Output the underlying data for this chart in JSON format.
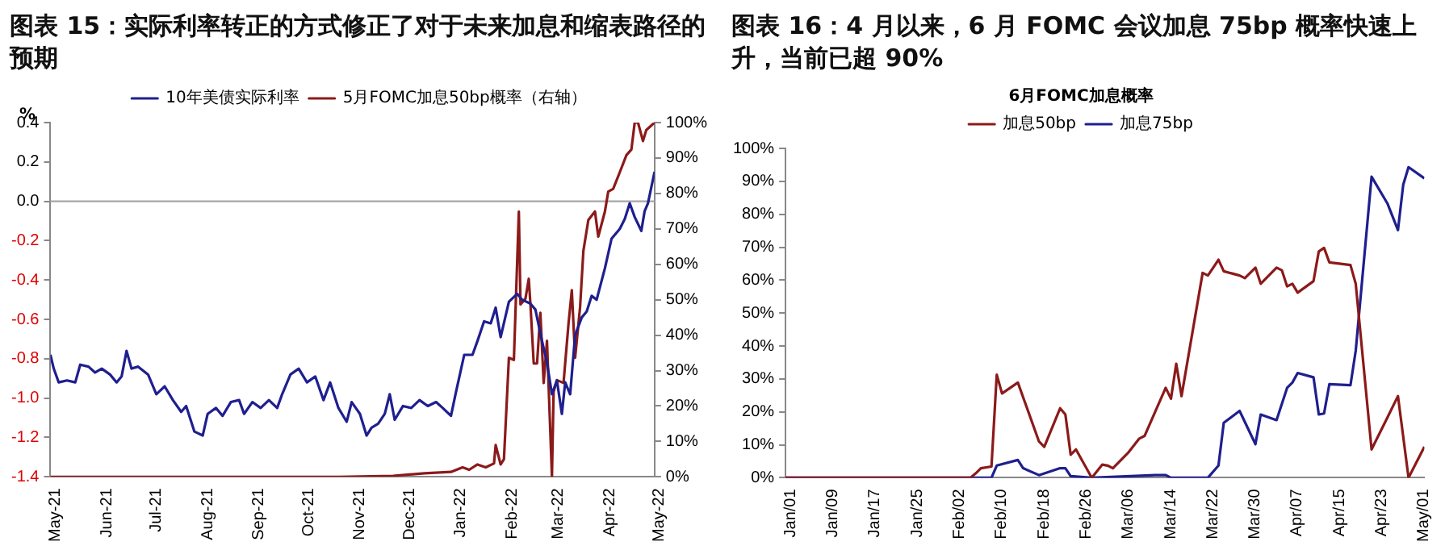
{
  "chart_data": [
    {
      "type": "line",
      "title": "图表 15：实际利率转正的方式修正了对于未来加息和缩表路径的预期",
      "ylabel": "%",
      "legend": "top",
      "grid": false,
      "marker": "none",
      "xlim": [
        "2021-05-01",
        "2022-05-01"
      ],
      "xticks": [
        {
          "value": "2021-05-01",
          "label": "May-21"
        },
        {
          "value": "2021-06-01",
          "label": "Jun-21"
        },
        {
          "value": "2021-07-01",
          "label": "Jul-21"
        },
        {
          "value": "2021-08-01",
          "label": "Aug-21"
        },
        {
          "value": "2021-09-01",
          "label": "Sep-21"
        },
        {
          "value": "2021-10-01",
          "label": "Oct-21"
        },
        {
          "value": "2021-11-01",
          "label": "Nov-21"
        },
        {
          "value": "2021-12-01",
          "label": "Dec-21"
        },
        {
          "value": "2022-01-01",
          "label": "Jan-22"
        },
        {
          "value": "2022-02-01",
          "label": "Feb-22"
        },
        {
          "value": "2022-03-01",
          "label": "Mar-22"
        },
        {
          "value": "2022-04-01",
          "label": "Apr-22"
        },
        {
          "value": "2022-05-01",
          "label": "May-22"
        }
      ],
      "ylim": [
        -1.4,
        0.4
      ],
      "yticks": [
        {
          "value": -1.4,
          "label": "-1.4"
        },
        {
          "value": -1.2,
          "label": "-1.2"
        },
        {
          "value": -1.0,
          "label": "-1.0"
        },
        {
          "value": -0.8,
          "label": "-0.8"
        },
        {
          "value": -0.6,
          "label": "-0.6"
        },
        {
          "value": -0.4,
          "label": "-0.4"
        },
        {
          "value": -0.2,
          "label": "-0.2"
        },
        {
          "value": 0,
          "label": "0.0"
        },
        {
          "value": 0.2,
          "label": "0.2"
        },
        {
          "value": 0.4,
          "label": "0.4"
        }
      ],
      "y2lim": [
        0,
        100
      ],
      "y2ticks": [
        {
          "value": 0,
          "label": "0%"
        },
        {
          "value": 10,
          "label": "10%"
        },
        {
          "value": 20,
          "label": "20%"
        },
        {
          "value": 30,
          "label": "30%"
        },
        {
          "value": 40,
          "label": "40%"
        },
        {
          "value": 50,
          "label": "50%"
        },
        {
          "value": 60,
          "label": "60%"
        },
        {
          "value": 70,
          "label": "70%"
        },
        {
          "value": 80,
          "label": "80%"
        },
        {
          "value": 90,
          "label": "90%"
        },
        {
          "value": 100,
          "label": "100%"
        }
      ],
      "ref_lines": [
        {
          "axis": "y",
          "value": 0,
          "color": "#a6a6a6"
        }
      ],
      "series": [
        {
          "name": "10年美债实际利率",
          "color": "#1f1f8f",
          "x": [
            "2021-05-01",
            "2021-05-03",
            "2021-05-06",
            "2021-05-11",
            "2021-05-16",
            "2021-05-19",
            "2021-05-24",
            "2021-05-28",
            "2021-06-01",
            "2021-06-06",
            "2021-06-10",
            "2021-06-13",
            "2021-06-16",
            "2021-06-19",
            "2021-06-23",
            "2021-06-29",
            "2021-07-04",
            "2021-07-09",
            "2021-07-14",
            "2021-07-19",
            "2021-07-22",
            "2021-07-27",
            "2021-08-01",
            "2021-08-04",
            "2021-08-09",
            "2021-08-13",
            "2021-08-18",
            "2021-08-23",
            "2021-08-26",
            "2021-08-31",
            "2021-09-05",
            "2021-09-10",
            "2021-09-15",
            "2021-09-18",
            "2021-09-23",
            "2021-09-28",
            "2021-10-03",
            "2021-10-08",
            "2021-10-13",
            "2021-10-17",
            "2021-10-22",
            "2021-10-27",
            "2021-10-30",
            "2021-11-04",
            "2021-11-08",
            "2021-11-11",
            "2021-11-15",
            "2021-11-19",
            "2021-11-22",
            "2021-11-25",
            "2021-11-30",
            "2021-12-05",
            "2021-12-10",
            "2021-12-15",
            "2021-12-20",
            "2021-12-24",
            "2021-12-29",
            "2022-01-01",
            "2022-01-06",
            "2022-01-11",
            "2022-01-14",
            "2022-01-18",
            "2022-01-22",
            "2022-01-25",
            "2022-01-28",
            "2022-02-02",
            "2022-02-07",
            "2022-02-10",
            "2022-02-15",
            "2022-02-18",
            "2022-02-22",
            "2022-02-25",
            "2022-02-28",
            "2022-03-03",
            "2022-03-06",
            "2022-03-08",
            "2022-03-11",
            "2022-03-14",
            "2022-03-18",
            "2022-03-21",
            "2022-03-24",
            "2022-03-27",
            "2022-04-01",
            "2022-04-05",
            "2022-04-10",
            "2022-04-13",
            "2022-04-16",
            "2022-04-19",
            "2022-04-23",
            "2022-04-25",
            "2022-04-27",
            "2022-05-01"
          ],
          "values": [
            -0.78,
            -0.85,
            -0.92,
            -0.91,
            -0.92,
            -0.83,
            -0.84,
            -0.87,
            -0.85,
            -0.88,
            -0.92,
            -0.89,
            -0.76,
            -0.85,
            -0.84,
            -0.88,
            -0.98,
            -0.94,
            -1.01,
            -1.07,
            -1.04,
            -1.17,
            -1.19,
            -1.08,
            -1.05,
            -1.09,
            -1.02,
            -1.01,
            -1.08,
            -1.02,
            -1.05,
            -1.01,
            -1.05,
            -0.98,
            -0.88,
            -0.85,
            -0.92,
            -0.89,
            -1.01,
            -0.92,
            -1.05,
            -1.12,
            -1.02,
            -1.08,
            -1.19,
            -1.15,
            -1.13,
            -1.08,
            -0.98,
            -1.11,
            -1.04,
            -1.05,
            -1.01,
            -1.04,
            -1.02,
            -1.05,
            -1.09,
            -0.97,
            -0.78,
            -0.78,
            -0.71,
            -0.61,
            -0.62,
            -0.54,
            -0.69,
            -0.51,
            -0.47,
            -0.5,
            -0.52,
            -0.55,
            -0.71,
            -0.82,
            -0.98,
            -0.91,
            -1.08,
            -0.92,
            -0.98,
            -0.68,
            -0.59,
            -0.56,
            -0.48,
            -0.5,
            -0.34,
            -0.19,
            -0.14,
            -0.09,
            -0.01,
            -0.08,
            -0.15,
            -0.05,
            -0.01,
            0.15
          ]
        },
        {
          "name": "5月FOMC加息50bp概率（右轴）",
          "color": "#8b1a1a",
          "axis": "y2",
          "x": [
            "2021-05-01",
            "2021-10-22",
            "2021-11-24",
            "2021-12-13",
            "2021-12-29",
            "2022-01-05",
            "2022-01-09",
            "2022-01-14",
            "2022-01-19",
            "2022-01-24",
            "2022-01-25",
            "2022-01-28",
            "2022-01-30",
            "2022-02-02",
            "2022-02-05",
            "2022-02-08",
            "2022-02-09",
            "2022-02-12",
            "2022-02-14",
            "2022-02-15",
            "2022-02-17",
            "2022-02-19",
            "2022-02-21",
            "2022-02-23",
            "2022-02-25",
            "2022-02-28",
            "2022-03-01",
            "2022-03-03",
            "2022-03-07",
            "2022-03-10",
            "2022-03-12",
            "2022-03-14",
            "2022-03-17",
            "2022-03-19",
            "2022-03-22",
            "2022-03-26",
            "2022-03-28",
            "2022-04-01",
            "2022-04-03",
            "2022-04-06",
            "2022-04-10",
            "2022-04-14",
            "2022-04-17",
            "2022-04-19",
            "2022-04-21",
            "2022-04-24",
            "2022-04-26",
            "2022-05-01"
          ],
          "values": [
            0,
            0,
            0.3,
            1,
            1.4,
            2.7,
            2,
            3.5,
            2.7,
            3.8,
            9,
            3.5,
            5,
            33.6,
            33,
            74.9,
            48.7,
            50.3,
            55.9,
            48.7,
            32,
            32,
            46.3,
            26.5,
            38.4,
            0,
            24,
            27.3,
            26.5,
            43.2,
            52.7,
            33.6,
            47.9,
            63.8,
            72.5,
            74.9,
            67.8,
            74.9,
            80.5,
            81.3,
            86,
            90.8,
            92.4,
            100,
            100,
            94.8,
            97.9,
            100
          ]
        }
      ]
    },
    {
      "type": "line",
      "title": "图表 16：4 月以来，6 月 FOMC 会议加息 75bp 概率快速上升，当前已超 90%",
      "subtitle": "6月FOMC加息概率",
      "legend": "top",
      "grid": false,
      "marker": "none",
      "xlim": [
        "--01-01",
        "--05-02"
      ],
      "xticks": [
        {
          "value": "--01-01",
          "label": "Jan/01"
        },
        {
          "value": "--01-09",
          "label": "Jan/09"
        },
        {
          "value": "--01-17",
          "label": "Jan/17"
        },
        {
          "value": "--01-25",
          "label": "Jan/25"
        },
        {
          "value": "--02-02",
          "label": "Feb/02"
        },
        {
          "value": "--02-10",
          "label": "Feb/10"
        },
        {
          "value": "--02-18",
          "label": "Feb/18"
        },
        {
          "value": "--02-26",
          "label": "Feb/26"
        },
        {
          "value": "--03-06",
          "label": "Mar/06"
        },
        {
          "value": "--03-14",
          "label": "Mar/14"
        },
        {
          "value": "--03-22",
          "label": "Mar/22"
        },
        {
          "value": "--03-30",
          "label": "Mar/30"
        },
        {
          "value": "--04-07",
          "label": "Apr/07"
        },
        {
          "value": "--04-15",
          "label": "Apr/15"
        },
        {
          "value": "--04-23",
          "label": "Apr/23"
        },
        {
          "value": "--05-01",
          "label": "May/01"
        }
      ],
      "ylim": [
        0,
        100
      ],
      "yticks": [
        {
          "value": 0,
          "label": "0%"
        },
        {
          "value": 10,
          "label": "10%"
        },
        {
          "value": 20,
          "label": "20%"
        },
        {
          "value": 30,
          "label": "30%"
        },
        {
          "value": 40,
          "label": "40%"
        },
        {
          "value": 50,
          "label": "50%"
        },
        {
          "value": 60,
          "label": "60%"
        },
        {
          "value": 70,
          "label": "70%"
        },
        {
          "value": 80,
          "label": "80%"
        },
        {
          "value": 90,
          "label": "90%"
        },
        {
          "value": 100,
          "label": "100%"
        }
      ],
      "series": [
        {
          "name": "加息50bp",
          "color": "#8b1a1a",
          "x": [
            "--01-01",
            "--02-05",
            "--02-06",
            "--02-07",
            "--02-09",
            "--02-10",
            "--02-11",
            "--02-14",
            "--02-18",
            "--02-19",
            "--02-22",
            "--02-23",
            "--02-24",
            "--02-25",
            "--02-28",
            "--03-02",
            "--03-03",
            "--03-04",
            "--03-07",
            "--03-09",
            "--03-10",
            "--03-14",
            "--03-15",
            "--03-16",
            "--03-17",
            "--03-21",
            "--03-22",
            "--03-24",
            "--03-25",
            "--03-28",
            "--03-29",
            "--03-31",
            "--04-01",
            "--04-04",
            "--04-05",
            "--04-06",
            "--04-07",
            "--04-08",
            "--04-11",
            "--04-12",
            "--04-13",
            "--04-14",
            "--04-18",
            "--04-19",
            "--04-22",
            "--04-25",
            "--04-27",
            "--04-29",
            "--05-02"
          ],
          "values": [
            0,
            0,
            1.3,
            2.9,
            3.4,
            31.3,
            25.6,
            28.9,
            11,
            9.4,
            21.1,
            19.2,
            7,
            8.6,
            0,
            4,
            3.7,
            2.9,
            7.8,
            11.9,
            12.7,
            27.3,
            24,
            34.6,
            24.8,
            62.2,
            61.4,
            66.2,
            62.7,
            61.4,
            60.6,
            63.8,
            58.9,
            63.8,
            63,
            58.1,
            58.9,
            56.2,
            59.7,
            68.7,
            69.8,
            65.4,
            64.6,
            58.9,
            8.6,
            18.3,
            24.8,
            0,
            9.4
          ]
        },
        {
          "name": "加息75bp",
          "color": "#1f1f8f",
          "x": [
            "--01-01",
            "--02-09",
            "--02-10",
            "--02-14",
            "--02-15",
            "--02-18",
            "--02-22",
            "--02-23",
            "--02-24",
            "--02-28",
            "--03-12",
            "--03-14",
            "--03-15",
            "--03-22",
            "--03-24",
            "--03-25",
            "--03-28",
            "--03-31",
            "--04-01",
            "--04-04",
            "--04-06",
            "--04-07",
            "--04-08",
            "--04-11",
            "--04-12",
            "--04-13",
            "--04-14",
            "--04-18",
            "--04-19",
            "--04-22",
            "--04-25",
            "--04-27",
            "--04-28",
            "--04-29",
            "--05-02"
          ],
          "values": [
            0,
            0,
            3.7,
            5.4,
            2.9,
            0.8,
            2.9,
            2.9,
            0.5,
            0,
            0.8,
            0.8,
            0,
            0,
            3.7,
            16.7,
            20.3,
            10.2,
            19.2,
            17.5,
            27.3,
            28.9,
            31.8,
            30.5,
            19.2,
            19.5,
            28.4,
            28.1,
            38.6,
            91.4,
            83.3,
            75.2,
            89,
            94.3,
            90.9
          ]
        }
      ]
    }
  ]
}
